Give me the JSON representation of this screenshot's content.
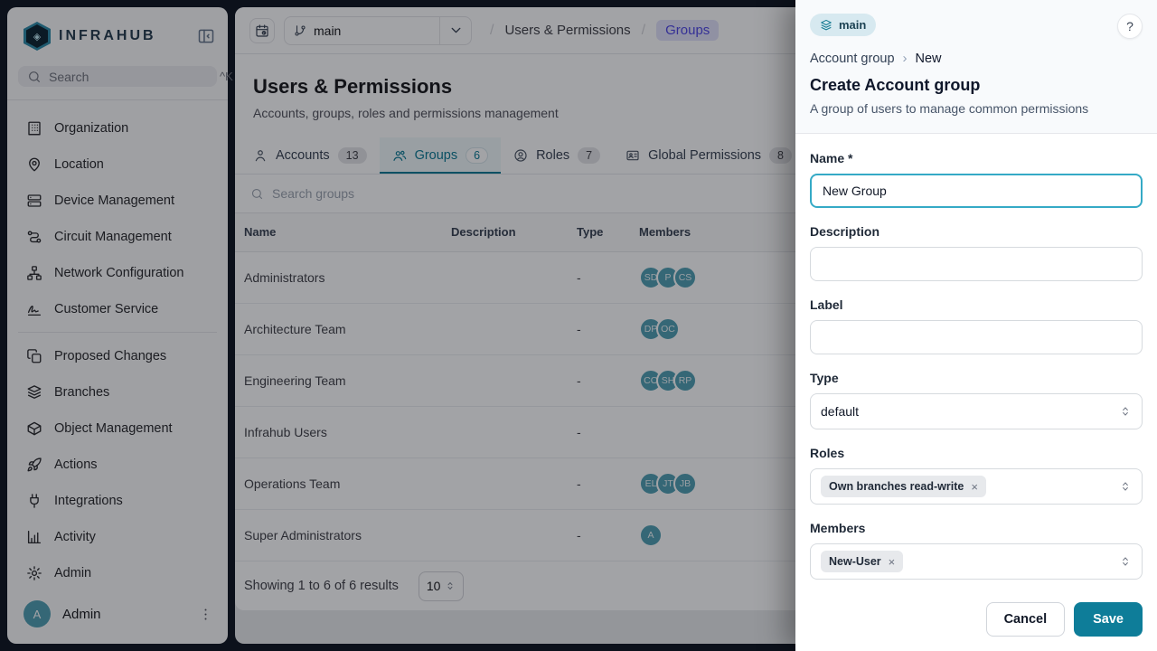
{
  "sidebar": {
    "logo_text": "INFRAHUB",
    "search": {
      "placeholder": "Search",
      "shortcut": "^K"
    },
    "items_primary": [
      {
        "label": "Organization",
        "icon": "building-icon"
      },
      {
        "label": "Location",
        "icon": "map-pin-icon"
      },
      {
        "label": "Device Management",
        "icon": "server-icon"
      },
      {
        "label": "Circuit Management",
        "icon": "route-icon"
      },
      {
        "label": "Network Configuration",
        "icon": "network-icon"
      },
      {
        "label": "Customer Service",
        "icon": "signature-icon"
      }
    ],
    "items_secondary": [
      {
        "label": "Proposed Changes",
        "icon": "copy-icon"
      },
      {
        "label": "Branches",
        "icon": "layers-icon"
      },
      {
        "label": "Object Management",
        "icon": "cube-icon"
      },
      {
        "label": "Actions",
        "icon": "rocket-icon"
      },
      {
        "label": "Integrations",
        "icon": "plug-icon"
      },
      {
        "label": "Activity",
        "icon": "bar-chart-icon"
      },
      {
        "label": "Admin",
        "icon": "gear-icon"
      }
    ],
    "user": {
      "initial": "A",
      "name": "Admin"
    }
  },
  "header": {
    "branch": "main",
    "breadcrumb": {
      "section": "Users & Permissions",
      "current": "Groups"
    }
  },
  "page": {
    "title": "Users & Permissions",
    "subtitle": "Accounts, groups, roles and permissions management",
    "tabs": [
      {
        "label": "Accounts",
        "count": "13",
        "icon": "person-icon",
        "active": false
      },
      {
        "label": "Groups",
        "count": "6",
        "icon": "people-icon",
        "active": true
      },
      {
        "label": "Roles",
        "count": "7",
        "icon": "user-circle-icon",
        "active": false
      },
      {
        "label": "Global Permissions",
        "count": "8",
        "icon": "id-card-icon",
        "active": false
      }
    ],
    "search_placeholder": "Search groups",
    "table": {
      "columns": [
        "Name",
        "Description",
        "Type",
        "Members"
      ],
      "rows": [
        {
          "name": "Administrators",
          "description": "",
          "type": "-",
          "members": [
            "SD",
            "P",
            "CS"
          ]
        },
        {
          "name": "Architecture Team",
          "description": "",
          "type": "-",
          "members": [
            "DP",
            "OC"
          ]
        },
        {
          "name": "Engineering Team",
          "description": "",
          "type": "-",
          "members": [
            "CO",
            "SH",
            "RP"
          ]
        },
        {
          "name": "Infrahub Users",
          "description": "",
          "type": "-",
          "members": []
        },
        {
          "name": "Operations Team",
          "description": "",
          "type": "-",
          "members": [
            "EL",
            "JT",
            "JB"
          ]
        },
        {
          "name": "Super Administrators",
          "description": "",
          "type": "-",
          "members": [
            "A"
          ]
        }
      ]
    },
    "footer": {
      "summary": "Showing 1 to 6 of 6 results",
      "page_size": "10"
    }
  },
  "drawer": {
    "branch_badge": "main",
    "help_label": "?",
    "breadcrumb": {
      "parent": "Account group",
      "current": "New"
    },
    "title": "Create Account group",
    "subtitle": "A group of users to manage common permissions",
    "fields": {
      "name": {
        "label": "Name *",
        "value": "New Group"
      },
      "description": {
        "label": "Description",
        "value": ""
      },
      "label": {
        "label": "Label",
        "value": ""
      },
      "type": {
        "label": "Type",
        "value": "default"
      },
      "roles": {
        "label": "Roles",
        "chips": [
          "Own branches read-write"
        ]
      },
      "members": {
        "label": "Members",
        "chips": [
          "New-User"
        ]
      }
    },
    "cancel_label": "Cancel",
    "save_label": "Save"
  },
  "colors": {
    "accent_teal": "#0e7d99",
    "avatar_teal": "#4f9fb2",
    "active_tab_teal": "#0b7a94",
    "breadcrumb_chip_text": "#4f46e5",
    "breadcrumb_chip_bg": "#e3e3fa",
    "branch_badge_bg": "#d7e9f0"
  }
}
